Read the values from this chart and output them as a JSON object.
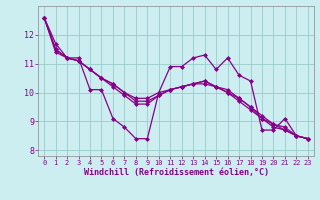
{
  "xlabel": "Windchill (Refroidissement éolien,°C)",
  "bg_color": "#cceef0",
  "line_color": "#880088",
  "grid_color": "#99cccc",
  "xlim": [
    -0.5,
    23.5
  ],
  "ylim": [
    7.8,
    13.0
  ],
  "yticks": [
    8,
    9,
    10,
    11,
    12
  ],
  "xticks": [
    0,
    1,
    2,
    3,
    4,
    5,
    6,
    7,
    8,
    9,
    10,
    11,
    12,
    13,
    14,
    15,
    16,
    17,
    18,
    19,
    20,
    21,
    22,
    23
  ],
  "series": [
    [
      12.6,
      11.7,
      11.2,
      11.2,
      10.1,
      10.1,
      9.1,
      8.8,
      8.4,
      8.4,
      10.0,
      10.9,
      10.9,
      11.2,
      11.3,
      10.8,
      11.2,
      10.6,
      10.4,
      8.7,
      8.7,
      9.1,
      8.5,
      8.4
    ],
    [
      12.6,
      11.5,
      11.2,
      11.1,
      10.8,
      10.5,
      10.2,
      9.9,
      9.6,
      9.6,
      9.9,
      10.1,
      10.2,
      10.3,
      10.3,
      10.2,
      10.0,
      9.8,
      9.5,
      9.2,
      8.9,
      8.8,
      8.5,
      8.4
    ],
    [
      12.6,
      11.5,
      11.2,
      11.1,
      10.8,
      10.5,
      10.3,
      10.0,
      9.8,
      9.8,
      10.0,
      10.1,
      10.2,
      10.3,
      10.4,
      10.2,
      10.1,
      9.8,
      9.5,
      9.1,
      8.9,
      8.7,
      8.5,
      8.4
    ],
    [
      12.6,
      11.4,
      11.2,
      11.1,
      10.8,
      10.5,
      10.3,
      10.0,
      9.7,
      9.7,
      9.9,
      10.1,
      10.2,
      10.3,
      10.4,
      10.2,
      10.0,
      9.7,
      9.4,
      9.1,
      8.8,
      8.7,
      8.5,
      8.4
    ]
  ]
}
